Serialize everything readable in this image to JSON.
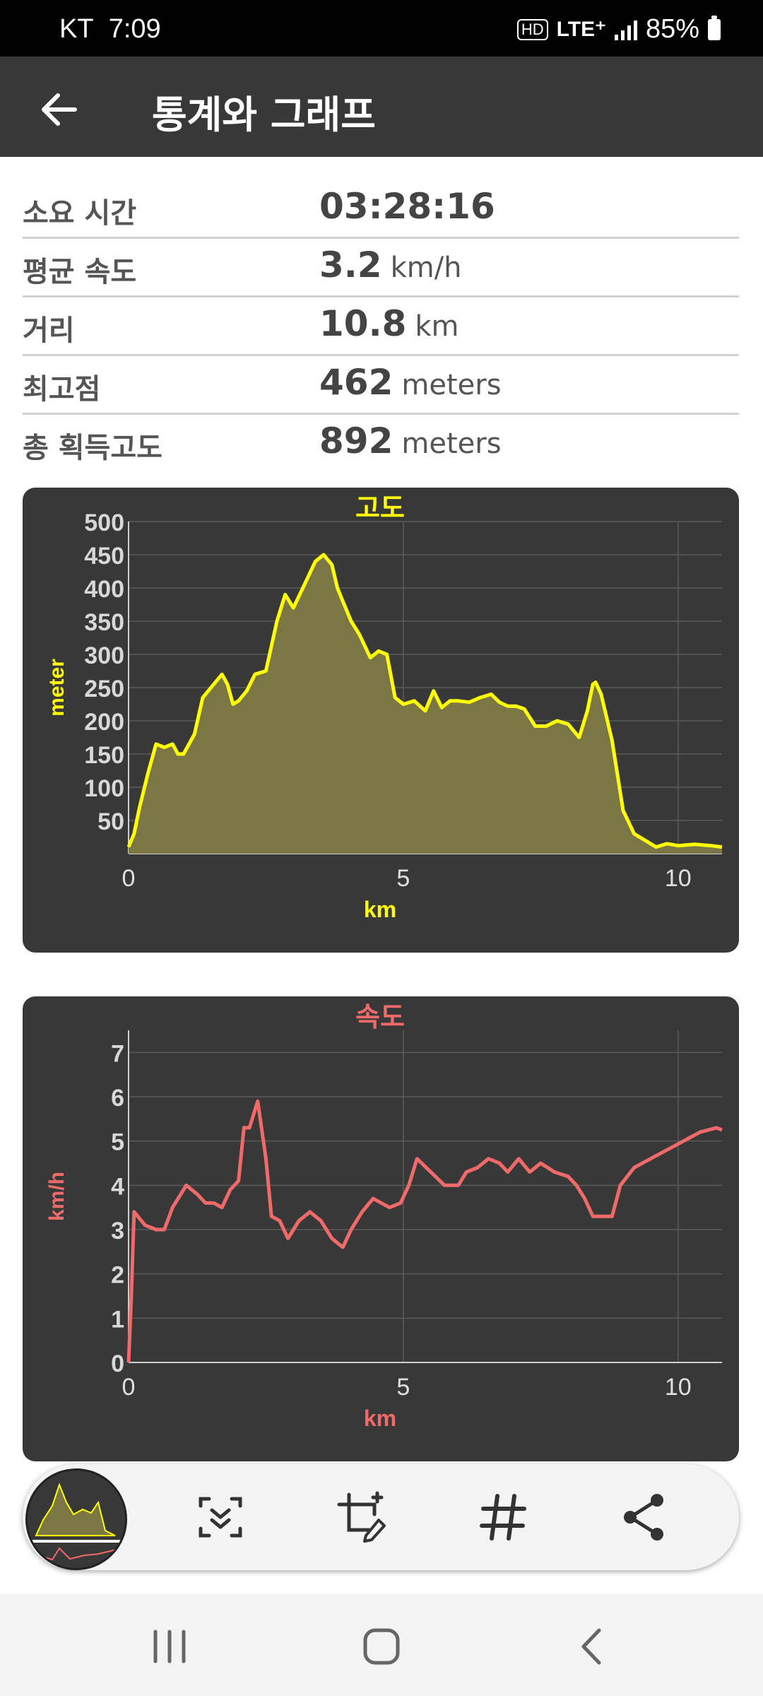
{
  "status_bar": {
    "carrier": "KT",
    "time": "7:09",
    "hd": "HD",
    "network": "LTE⁺",
    "battery": "85%"
  },
  "header": {
    "back_icon": "arrow-left-icon",
    "title": "통계와 그래프"
  },
  "stats": [
    {
      "label": "소요 시간",
      "value": "03:28:16",
      "unit": ""
    },
    {
      "label": "평균 속도",
      "value": "3.2",
      "unit": "km/h"
    },
    {
      "label": "거리",
      "value": "10.8",
      "unit": "km"
    },
    {
      "label": "최고점",
      "value": "462",
      "unit": "meters"
    },
    {
      "label": "총 획득고도",
      "value": "892",
      "unit": "meters"
    }
  ],
  "chart_data": [
    {
      "type": "area",
      "title": "고도",
      "xlabel": "km",
      "ylabel": "meter",
      "color": "#ffff00",
      "fill": "#7a7744",
      "xlim": [
        0,
        10.8
      ],
      "ylim": [
        0,
        500
      ],
      "xticks": [
        0,
        5,
        10
      ],
      "yticks": [
        50,
        100,
        150,
        200,
        250,
        300,
        350,
        400,
        450,
        500
      ],
      "grid": true,
      "x": [
        0,
        0.1,
        0.2,
        0.35,
        0.5,
        0.65,
        0.8,
        0.9,
        1.0,
        1.2,
        1.35,
        1.5,
        1.7,
        1.8,
        1.9,
        2.0,
        2.15,
        2.3,
        2.5,
        2.7,
        2.85,
        3.0,
        3.2,
        3.4,
        3.55,
        3.7,
        3.8,
        3.9,
        4.05,
        4.2,
        4.4,
        4.55,
        4.7,
        4.85,
        5.0,
        5.2,
        5.4,
        5.55,
        5.7,
        5.85,
        6.0,
        6.2,
        6.4,
        6.6,
        6.75,
        6.9,
        7.05,
        7.2,
        7.4,
        7.6,
        7.8,
        8.0,
        8.2,
        8.35,
        8.45,
        8.5,
        8.6,
        8.8,
        9.0,
        9.2,
        9.4,
        9.6,
        9.8,
        10.0,
        10.3,
        10.6,
        10.8
      ],
      "y": [
        10,
        30,
        70,
        120,
        165,
        160,
        165,
        150,
        150,
        180,
        235,
        250,
        270,
        255,
        225,
        230,
        245,
        270,
        275,
        350,
        390,
        370,
        405,
        440,
        450,
        435,
        400,
        380,
        350,
        330,
        295,
        305,
        300,
        235,
        225,
        230,
        215,
        245,
        220,
        230,
        230,
        228,
        235,
        240,
        228,
        222,
        222,
        218,
        192,
        192,
        200,
        195,
        175,
        215,
        255,
        258,
        240,
        170,
        65,
        30,
        20,
        10,
        15,
        12,
        14,
        12,
        10
      ]
    },
    {
      "type": "line",
      "title": "속도",
      "xlabel": "km",
      "ylabel": "km/h",
      "color": "#f06a6a",
      "xlim": [
        0,
        10.8
      ],
      "ylim": [
        0,
        7.5
      ],
      "xticks": [
        0,
        5,
        10
      ],
      "yticks": [
        0,
        1,
        2,
        3,
        4,
        5,
        6,
        7
      ],
      "grid": true,
      "x": [
        0,
        0.05,
        0.1,
        0.3,
        0.5,
        0.65,
        0.8,
        0.95,
        1.05,
        1.25,
        1.4,
        1.55,
        1.7,
        1.85,
        2.0,
        2.1,
        2.2,
        2.35,
        2.5,
        2.6,
        2.75,
        2.9,
        3.1,
        3.3,
        3.5,
        3.7,
        3.9,
        4.05,
        4.25,
        4.45,
        4.6,
        4.75,
        4.95,
        5.1,
        5.25,
        5.5,
        5.75,
        6.0,
        6.15,
        6.35,
        6.55,
        6.75,
        6.9,
        7.1,
        7.3,
        7.5,
        7.75,
        8.0,
        8.15,
        8.3,
        8.45,
        8.6,
        8.8,
        8.95,
        9.2,
        9.5,
        9.8,
        10.1,
        10.4,
        10.7,
        10.8
      ],
      "y": [
        0,
        1.5,
        3.4,
        3.1,
        3.0,
        3.0,
        3.5,
        3.8,
        4.0,
        3.8,
        3.6,
        3.6,
        3.5,
        3.9,
        4.1,
        5.3,
        5.3,
        5.9,
        4.6,
        3.3,
        3.2,
        2.8,
        3.2,
        3.4,
        3.2,
        2.8,
        2.6,
        3.0,
        3.4,
        3.7,
        3.6,
        3.5,
        3.6,
        4.0,
        4.6,
        4.3,
        4.0,
        4.0,
        4.3,
        4.4,
        4.6,
        4.5,
        4.3,
        4.6,
        4.3,
        4.5,
        4.3,
        4.2,
        4.0,
        3.7,
        3.3,
        3.3,
        3.3,
        4.0,
        4.4,
        4.6,
        4.8,
        5.0,
        5.2,
        5.3,
        5.25
      ]
    }
  ],
  "toolbar": {
    "thumbnail_icon": "screenshot-thumbnail",
    "scroll_capture_icon": "scroll-capture-icon",
    "edit_icon": "crop-edit-icon",
    "tag_icon": "hashtag-icon",
    "share_icon": "share-icon"
  },
  "navbar": {
    "recents_icon": "recent-apps-icon",
    "home_icon": "home-icon",
    "back_icon": "back-icon"
  }
}
